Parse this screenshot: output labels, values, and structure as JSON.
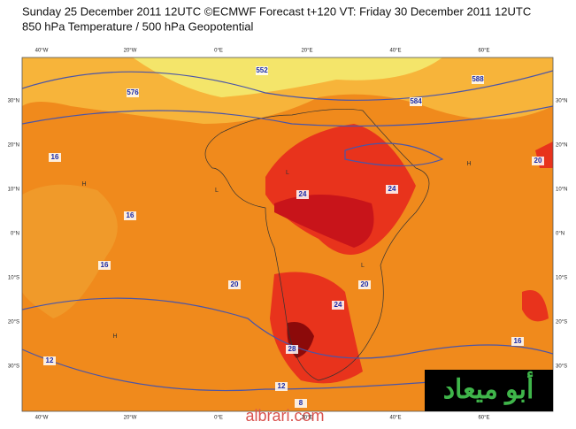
{
  "header": {
    "line1": "Sunday 25 December 2011 12UTC ©ECMWF Forecast t+120 VT: Friday 30 December 2011 12UTC",
    "line2": "850 hPa Temperature / 500 hPa Geopotential"
  },
  "lon_labels": [
    "40°W",
    "20°W",
    "0°E",
    "20°E",
    "40°E",
    "60°E"
  ],
  "lat_labels": [
    "30°N",
    "20°N",
    "10°N",
    "0°N",
    "10°S",
    "20°S",
    "30°S"
  ],
  "contour_labels": [
    "16",
    "16",
    "16",
    "20",
    "24",
    "28",
    "24",
    "20",
    "12",
    "12",
    "8",
    "552",
    "576",
    "584",
    "588",
    "20",
    "24",
    "16"
  ],
  "markers": [
    "H",
    "H",
    "L",
    "L",
    "H",
    "L"
  ],
  "watermark": {
    "arabic": "أبو ميعاد",
    "site": "albrari.com"
  }
}
